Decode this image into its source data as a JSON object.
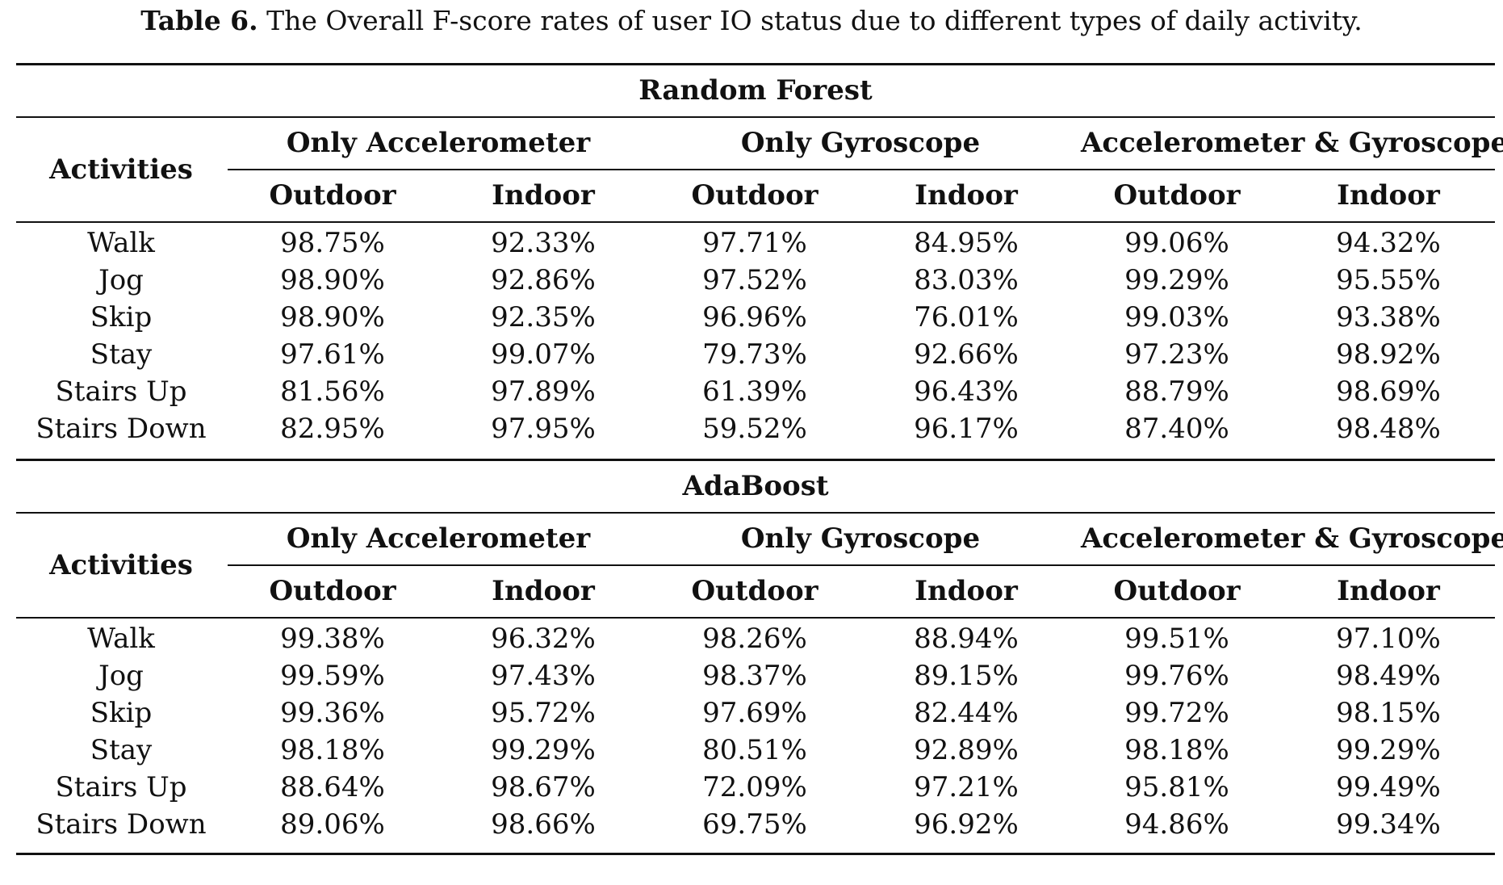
{
  "caption": {
    "label": "Table 6.",
    "text": "The Overall F-score rates of user IO status due to different types of daily activity."
  },
  "table": {
    "row_header": "Activities",
    "groups": [
      "Only Accelerometer",
      "Only Gyroscope",
      "Accelerometer & Gyroscope"
    ],
    "subcolumns": [
      "Outdoor",
      "Indoor",
      "Outdoor",
      "Indoor",
      "Outdoor",
      "Indoor"
    ],
    "sections": [
      {
        "title": "Random Forest",
        "rows": [
          {
            "activity": "Walk",
            "values": [
              "98.75%",
              "92.33%",
              "97.71%",
              "84.95%",
              "99.06%",
              "94.32%"
            ]
          },
          {
            "activity": "Jog",
            "values": [
              "98.90%",
              "92.86%",
              "97.52%",
              "83.03%",
              "99.29%",
              "95.55%"
            ]
          },
          {
            "activity": "Skip",
            "values": [
              "98.90%",
              "92.35%",
              "96.96%",
              "76.01%",
              "99.03%",
              "93.38%"
            ]
          },
          {
            "activity": "Stay",
            "values": [
              "97.61%",
              "99.07%",
              "79.73%",
              "92.66%",
              "97.23%",
              "98.92%"
            ]
          },
          {
            "activity": "Stairs Up",
            "values": [
              "81.56%",
              "97.89%",
              "61.39%",
              "96.43%",
              "88.79%",
              "98.69%"
            ]
          },
          {
            "activity": "Stairs Down",
            "values": [
              "82.95%",
              "97.95%",
              "59.52%",
              "96.17%",
              "87.40%",
              "98.48%"
            ]
          }
        ]
      },
      {
        "title": "AdaBoost",
        "rows": [
          {
            "activity": "Walk",
            "values": [
              "99.38%",
              "96.32%",
              "98.26%",
              "88.94%",
              "99.51%",
              "97.10%"
            ]
          },
          {
            "activity": "Jog",
            "values": [
              "99.59%",
              "97.43%",
              "98.37%",
              "89.15%",
              "99.76%",
              "98.49%"
            ]
          },
          {
            "activity": "Skip",
            "values": [
              "99.36%",
              "95.72%",
              "97.69%",
              "82.44%",
              "99.72%",
              "98.15%"
            ]
          },
          {
            "activity": "Stay",
            "values": [
              "98.18%",
              "99.29%",
              "80.51%",
              "92.89%",
              "98.18%",
              "99.29%"
            ]
          },
          {
            "activity": "Stairs Up",
            "values": [
              "88.64%",
              "98.67%",
              "72.09%",
              "97.21%",
              "95.81%",
              "99.49%"
            ]
          },
          {
            "activity": "Stairs Down",
            "values": [
              "89.06%",
              "98.66%",
              "69.75%",
              "96.92%",
              "94.86%",
              "99.34%"
            ]
          }
        ]
      }
    ]
  }
}
